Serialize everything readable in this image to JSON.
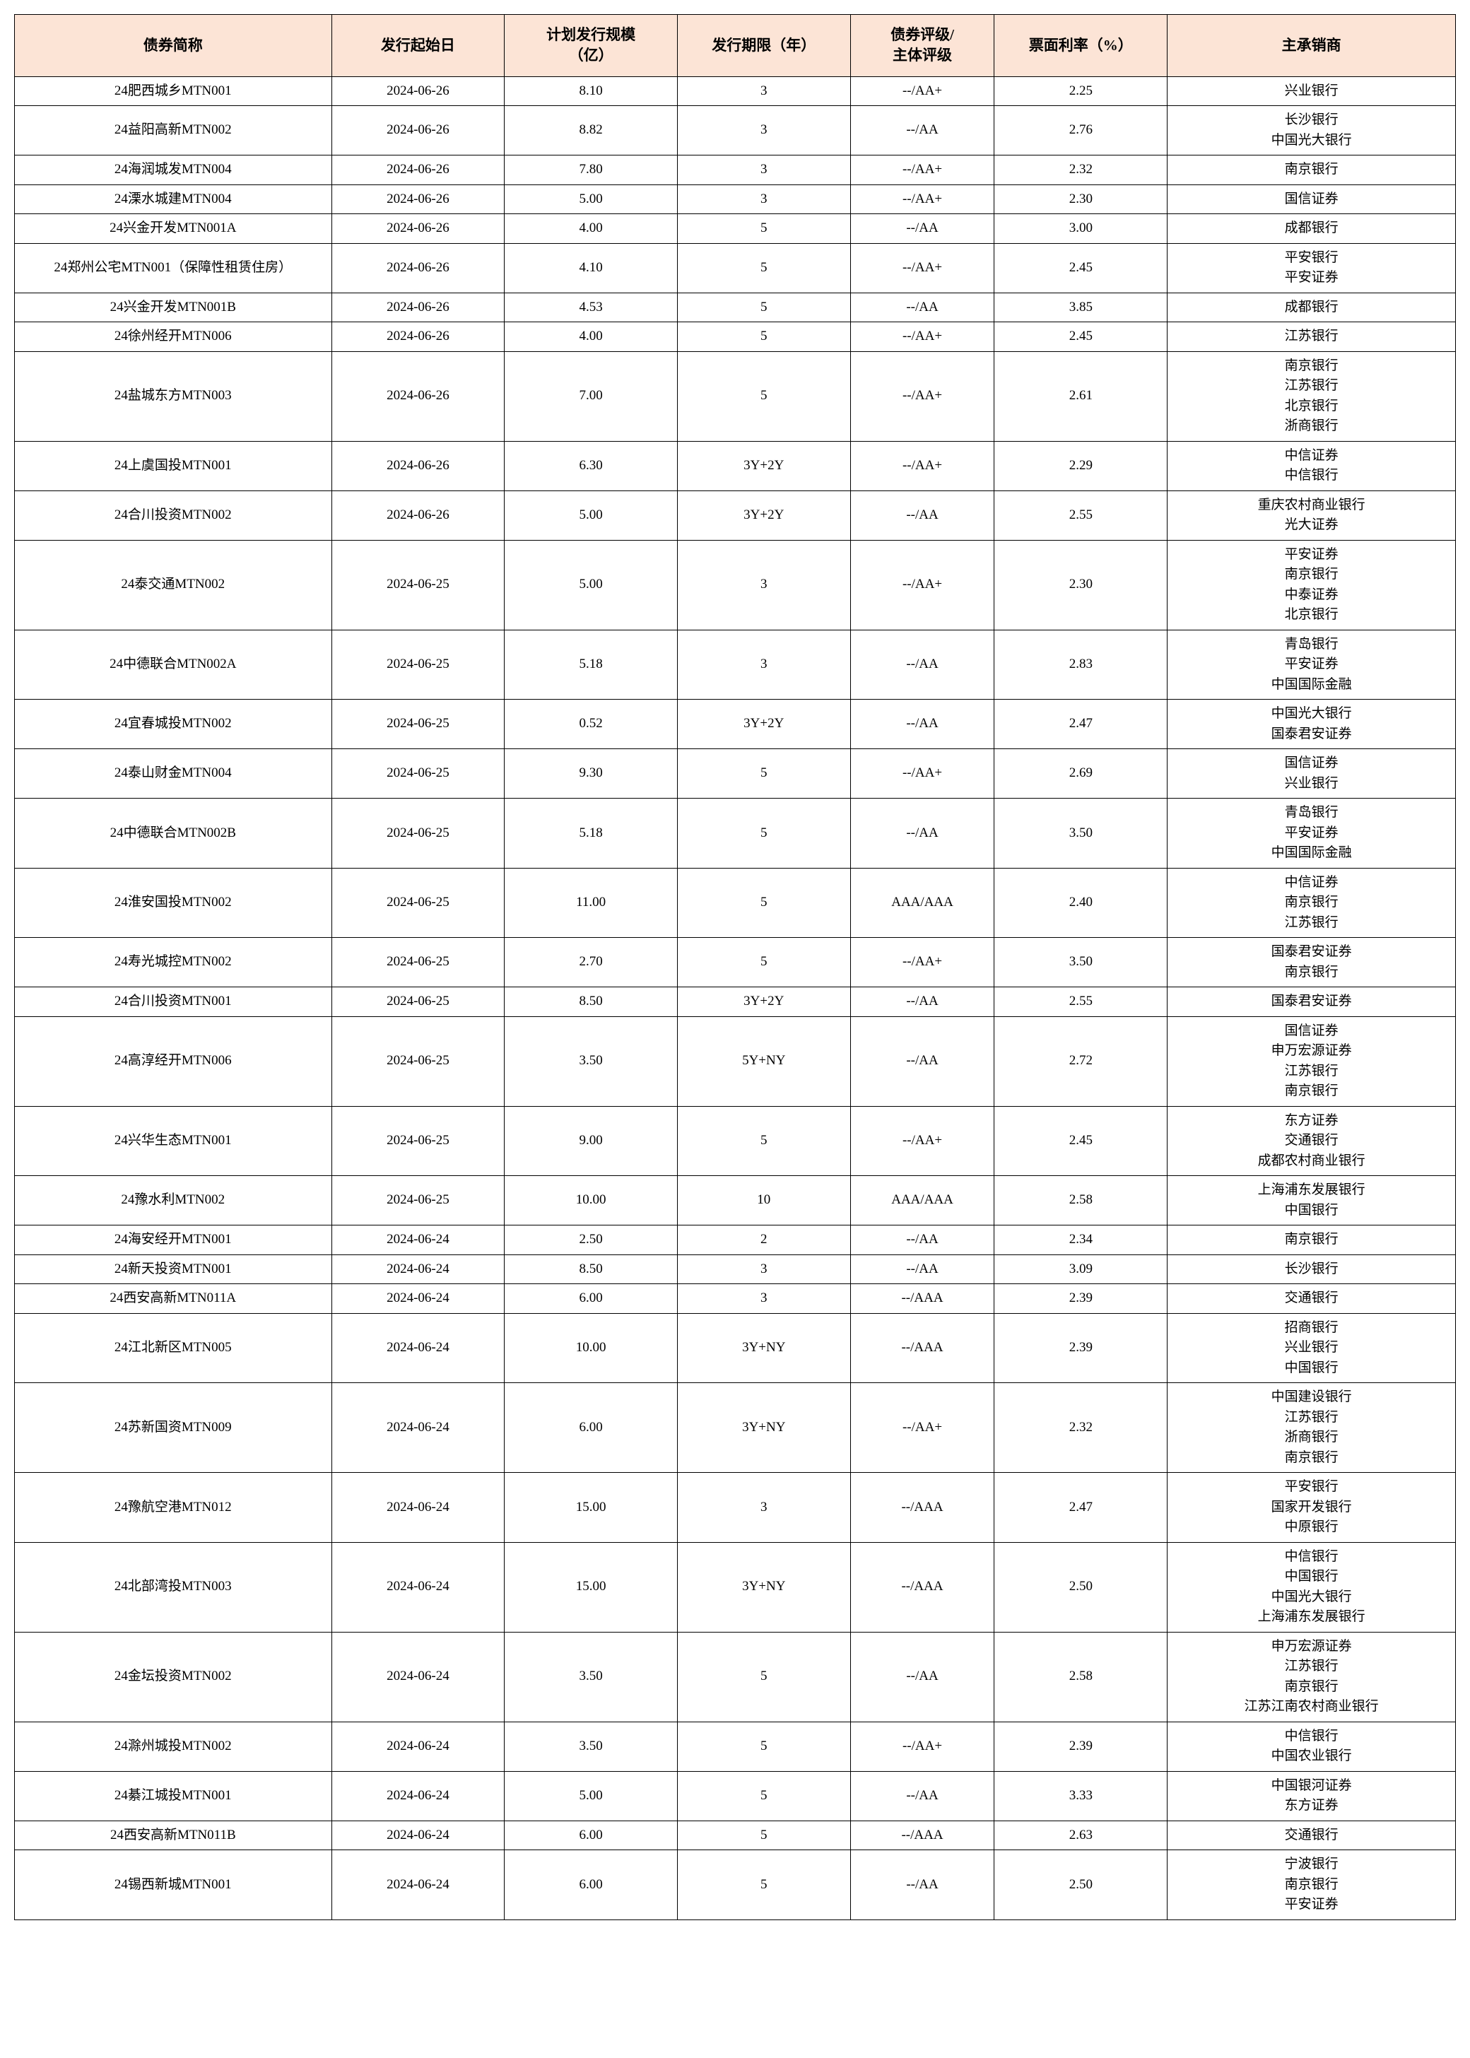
{
  "type": "table",
  "columns": [
    "债券简称",
    "发行起始日",
    "计划发行规模\n（亿）",
    "发行期限（年）",
    "债券评级/\n主体评级",
    "票面利率（%）",
    "主承销商"
  ],
  "header_bg": "#fce4d6",
  "border_color": "#000000",
  "font_family": "SimSun",
  "header_fontsize": 21,
  "body_fontsize": 19,
  "col_widths_pct": [
    22,
    12,
    12,
    12,
    10,
    12,
    20
  ],
  "rows": [
    {
      "name": "24肥西城乡MTN001",
      "date": "2024-06-26",
      "scale": "8.10",
      "term": "3",
      "rating": "--/AA+",
      "rate": "2.25",
      "under": [
        "兴业银行"
      ]
    },
    {
      "name": "24益阳高新MTN002",
      "date": "2024-06-26",
      "scale": "8.82",
      "term": "3",
      "rating": "--/AA",
      "rate": "2.76",
      "under": [
        "长沙银行",
        "中国光大银行"
      ]
    },
    {
      "name": "24海润城发MTN004",
      "date": "2024-06-26",
      "scale": "7.80",
      "term": "3",
      "rating": "--/AA+",
      "rate": "2.32",
      "under": [
        "南京银行"
      ]
    },
    {
      "name": "24溧水城建MTN004",
      "date": "2024-06-26",
      "scale": "5.00",
      "term": "3",
      "rating": "--/AA+",
      "rate": "2.30",
      "under": [
        "国信证券"
      ]
    },
    {
      "name": "24兴金开发MTN001A",
      "date": "2024-06-26",
      "scale": "4.00",
      "term": "5",
      "rating": "--/AA",
      "rate": "3.00",
      "under": [
        "成都银行"
      ]
    },
    {
      "name": "24郑州公宅MTN001（保障性租赁住房）",
      "date": "2024-06-26",
      "scale": "4.10",
      "term": "5",
      "rating": "--/AA+",
      "rate": "2.45",
      "under": [
        "平安银行",
        "平安证券"
      ]
    },
    {
      "name": "24兴金开发MTN001B",
      "date": "2024-06-26",
      "scale": "4.53",
      "term": "5",
      "rating": "--/AA",
      "rate": "3.85",
      "under": [
        "成都银行"
      ]
    },
    {
      "name": "24徐州经开MTN006",
      "date": "2024-06-26",
      "scale": "4.00",
      "term": "5",
      "rating": "--/AA+",
      "rate": "2.45",
      "under": [
        "江苏银行"
      ]
    },
    {
      "name": "24盐城东方MTN003",
      "date": "2024-06-26",
      "scale": "7.00",
      "term": "5",
      "rating": "--/AA+",
      "rate": "2.61",
      "under": [
        "南京银行",
        "江苏银行",
        "北京银行",
        "浙商银行"
      ]
    },
    {
      "name": "24上虞国投MTN001",
      "date": "2024-06-26",
      "scale": "6.30",
      "term": "3Y+2Y",
      "rating": "--/AA+",
      "rate": "2.29",
      "under": [
        "中信证券",
        "中信银行"
      ]
    },
    {
      "name": "24合川投资MTN002",
      "date": "2024-06-26",
      "scale": "5.00",
      "term": "3Y+2Y",
      "rating": "--/AA",
      "rate": "2.55",
      "under": [
        "重庆农村商业银行",
        "光大证券"
      ]
    },
    {
      "name": "24泰交通MTN002",
      "date": "2024-06-25",
      "scale": "5.00",
      "term": "3",
      "rating": "--/AA+",
      "rate": "2.30",
      "under": [
        "平安证券",
        "南京银行",
        "中泰证券",
        "北京银行"
      ]
    },
    {
      "name": "24中德联合MTN002A",
      "date": "2024-06-25",
      "scale": "5.18",
      "term": "3",
      "rating": "--/AA",
      "rate": "2.83",
      "under": [
        "青岛银行",
        "平安证券",
        "中国国际金融"
      ]
    },
    {
      "name": "24宜春城投MTN002",
      "date": "2024-06-25",
      "scale": "0.52",
      "term": "3Y+2Y",
      "rating": "--/AA",
      "rate": "2.47",
      "under": [
        "中国光大银行",
        "国泰君安证券"
      ]
    },
    {
      "name": "24泰山财金MTN004",
      "date": "2024-06-25",
      "scale": "9.30",
      "term": "5",
      "rating": "--/AA+",
      "rate": "2.69",
      "under": [
        "国信证券",
        "兴业银行"
      ]
    },
    {
      "name": "24中德联合MTN002B",
      "date": "2024-06-25",
      "scale": "5.18",
      "term": "5",
      "rating": "--/AA",
      "rate": "3.50",
      "under": [
        "青岛银行",
        "平安证券",
        "中国国际金融"
      ]
    },
    {
      "name": "24淮安国投MTN002",
      "date": "2024-06-25",
      "scale": "11.00",
      "term": "5",
      "rating": "AAA/AAA",
      "rate": "2.40",
      "under": [
        "中信证券",
        "南京银行",
        "江苏银行"
      ]
    },
    {
      "name": "24寿光城控MTN002",
      "date": "2024-06-25",
      "scale": "2.70",
      "term": "5",
      "rating": "--/AA+",
      "rate": "3.50",
      "under": [
        "国泰君安证券",
        "南京银行"
      ]
    },
    {
      "name": "24合川投资MTN001",
      "date": "2024-06-25",
      "scale": "8.50",
      "term": "3Y+2Y",
      "rating": "--/AA",
      "rate": "2.55",
      "under": [
        "国泰君安证券"
      ]
    },
    {
      "name": "24高淳经开MTN006",
      "date": "2024-06-25",
      "scale": "3.50",
      "term": "5Y+NY",
      "rating": "--/AA",
      "rate": "2.72",
      "under": [
        "国信证券",
        "申万宏源证券",
        "江苏银行",
        "南京银行"
      ]
    },
    {
      "name": "24兴华生态MTN001",
      "date": "2024-06-25",
      "scale": "9.00",
      "term": "5",
      "rating": "--/AA+",
      "rate": "2.45",
      "under": [
        "东方证券",
        "交通银行",
        "成都农村商业银行"
      ]
    },
    {
      "name": "24豫水利MTN002",
      "date": "2024-06-25",
      "scale": "10.00",
      "term": "10",
      "rating": "AAA/AAA",
      "rate": "2.58",
      "under": [
        "上海浦东发展银行",
        "中国银行"
      ]
    },
    {
      "name": "24海安经开MTN001",
      "date": "2024-06-24",
      "scale": "2.50",
      "term": "2",
      "rating": "--/AA",
      "rate": "2.34",
      "under": [
        "南京银行"
      ]
    },
    {
      "name": "24新天投资MTN001",
      "date": "2024-06-24",
      "scale": "8.50",
      "term": "3",
      "rating": "--/AA",
      "rate": "3.09",
      "under": [
        "长沙银行"
      ]
    },
    {
      "name": "24西安高新MTN011A",
      "date": "2024-06-24",
      "scale": "6.00",
      "term": "3",
      "rating": "--/AAA",
      "rate": "2.39",
      "under": [
        "交通银行"
      ]
    },
    {
      "name": "24江北新区MTN005",
      "date": "2024-06-24",
      "scale": "10.00",
      "term": "3Y+NY",
      "rating": "--/AAA",
      "rate": "2.39",
      "under": [
        "招商银行",
        "兴业银行",
        "中国银行"
      ]
    },
    {
      "name": "24苏新国资MTN009",
      "date": "2024-06-24",
      "scale": "6.00",
      "term": "3Y+NY",
      "rating": "--/AA+",
      "rate": "2.32",
      "under": [
        "中国建设银行",
        "江苏银行",
        "浙商银行",
        "南京银行"
      ]
    },
    {
      "name": "24豫航空港MTN012",
      "date": "2024-06-24",
      "scale": "15.00",
      "term": "3",
      "rating": "--/AAA",
      "rate": "2.47",
      "under": [
        "平安银行",
        "国家开发银行",
        "中原银行"
      ]
    },
    {
      "name": "24北部湾投MTN003",
      "date": "2024-06-24",
      "scale": "15.00",
      "term": "3Y+NY",
      "rating": "--/AAA",
      "rate": "2.50",
      "under": [
        "中信银行",
        "中国银行",
        "中国光大银行",
        "上海浦东发展银行"
      ]
    },
    {
      "name": "24金坛投资MTN002",
      "date": "2024-06-24",
      "scale": "3.50",
      "term": "5",
      "rating": "--/AA",
      "rate": "2.58",
      "under": [
        "申万宏源证券",
        "江苏银行",
        "南京银行",
        "江苏江南农村商业银行"
      ]
    },
    {
      "name": "24滁州城投MTN002",
      "date": "2024-06-24",
      "scale": "3.50",
      "term": "5",
      "rating": "--/AA+",
      "rate": "2.39",
      "under": [
        "中信银行",
        "中国农业银行"
      ]
    },
    {
      "name": "24綦江城投MTN001",
      "date": "2024-06-24",
      "scale": "5.00",
      "term": "5",
      "rating": "--/AA",
      "rate": "3.33",
      "under": [
        "中国银河证券",
        "东方证券"
      ]
    },
    {
      "name": "24西安高新MTN011B",
      "date": "2024-06-24",
      "scale": "6.00",
      "term": "5",
      "rating": "--/AAA",
      "rate": "2.63",
      "under": [
        "交通银行"
      ]
    },
    {
      "name": "24锡西新城MTN001",
      "date": "2024-06-24",
      "scale": "6.00",
      "term": "5",
      "rating": "--/AA",
      "rate": "2.50",
      "under": [
        "宁波银行",
        "南京银行",
        "平安证券"
      ]
    }
  ]
}
